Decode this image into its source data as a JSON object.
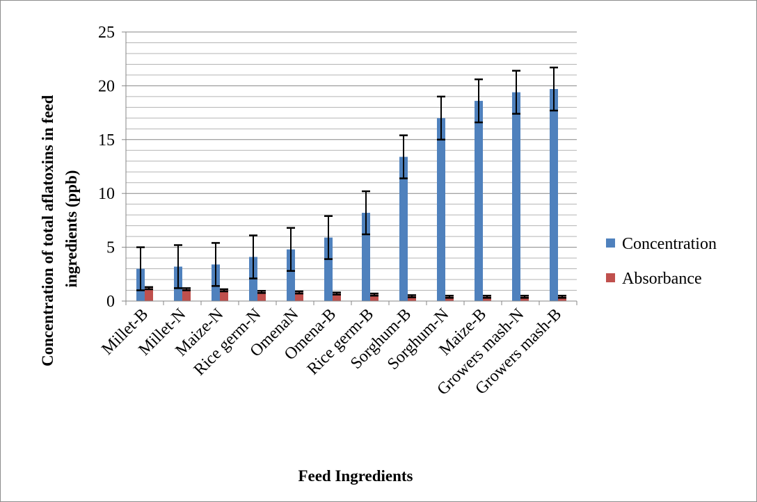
{
  "chart_data": {
    "type": "bar",
    "title": "",
    "xlabel": "Feed Ingredients",
    "ylabel_lines": [
      "Concentration of total aflatoxins in feed",
      "ingredients  (ppb)"
    ],
    "ylim": [
      0,
      25
    ],
    "yticks": [
      0,
      5,
      10,
      15,
      20,
      25
    ],
    "minor_grid_step": 1,
    "grid": true,
    "legend_position": "right",
    "categories": [
      "Millet-B",
      "Millet-N",
      "Maize-N",
      "Rice germ-N",
      "OmenaN",
      "Omena-B",
      "Rice germ-B",
      "Sorghum-B",
      "Sorghum-N",
      "Maize-B",
      "Growers mash-N",
      "Growers mash-B"
    ],
    "series": [
      {
        "name": "Concentration",
        "color": "#4f81bd",
        "values": [
          3.0,
          3.2,
          3.4,
          4.1,
          4.8,
          5.9,
          8.2,
          13.4,
          17.0,
          18.6,
          19.4,
          19.7
        ],
        "error": [
          2.0,
          2.0,
          2.0,
          2.0,
          2.0,
          2.0,
          2.0,
          2.0,
          2.0,
          2.0,
          2.0,
          2.0
        ]
      },
      {
        "name": "Absorbance",
        "color": "#c0504d",
        "values": [
          1.2,
          1.1,
          1.0,
          0.85,
          0.8,
          0.7,
          0.6,
          0.45,
          0.4,
          0.4,
          0.4,
          0.4
        ],
        "error": [
          0.1,
          0.1,
          0.1,
          0.1,
          0.1,
          0.1,
          0.1,
          0.1,
          0.1,
          0.1,
          0.1,
          0.1
        ]
      }
    ]
  }
}
